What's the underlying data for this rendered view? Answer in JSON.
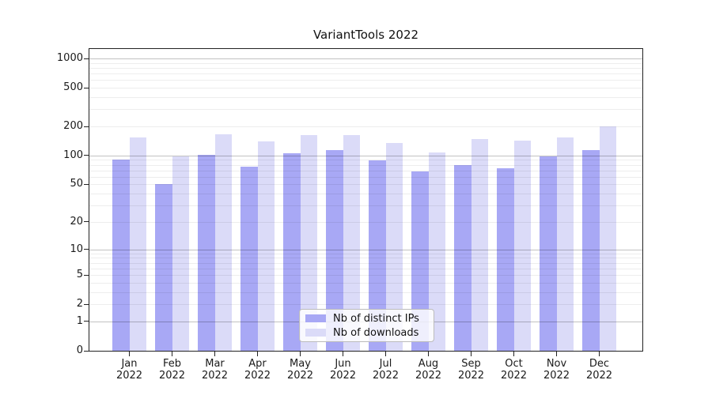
{
  "figure": {
    "background": "#ffffff"
  },
  "chart_data": {
    "type": "bar",
    "title": "VariantTools 2022",
    "x": {
      "months": [
        "Jan",
        "Feb",
        "Mar",
        "Apr",
        "May",
        "Jun",
        "Jul",
        "Aug",
        "Sep",
        "Oct",
        "Nov",
        "Dec"
      ],
      "year": "2022"
    },
    "series": [
      {
        "name": "Nb of distinct IPs",
        "color": "#a8a8f5",
        "values": [
          90,
          50,
          102,
          77,
          105,
          114,
          89,
          68,
          80,
          74,
          98,
          114
        ]
      },
      {
        "name": "Nb of downloads",
        "color": "#dbdbf8",
        "values": [
          155,
          98,
          166,
          140,
          164,
          162,
          135,
          108,
          147,
          143,
          155,
          201
        ]
      }
    ],
    "y_axis": {
      "scale": "log10(1+value)",
      "tick_labels": [
        0,
        1,
        2,
        5,
        10,
        20,
        50,
        100,
        200,
        500,
        1000
      ],
      "major_gridlines": [
        1,
        10,
        100,
        1000
      ],
      "minor_gridlines": [
        2,
        3,
        4,
        5,
        6,
        7,
        8,
        9,
        20,
        30,
        40,
        50,
        60,
        70,
        80,
        90,
        200,
        300,
        400,
        500,
        600,
        700,
        800,
        900
      ],
      "ylim": [
        0,
        1250
      ]
    },
    "legend": {
      "position": "lower center",
      "entries": [
        "Nb of distinct IPs",
        "Nb of downloads"
      ]
    },
    "grid": "both"
  },
  "colors": {
    "grid_major": "rgba(0,0,0,0.24)",
    "grid_minor": "rgba(0,0,0,0.07)",
    "spine": "#222222",
    "text": "#1a1a1a"
  }
}
